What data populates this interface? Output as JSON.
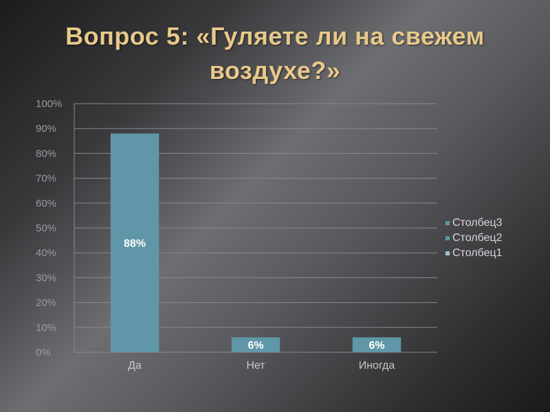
{
  "slide": {
    "title_line1": "Вопрос 5: «Гуляете ли на свежем",
    "title_line2": "воздухе?»"
  },
  "colors": {
    "bar": "#5f97a8",
    "title": "#e7c98a",
    "grid": "#8a8a8e",
    "legend_swatches": [
      "#5f97a8",
      "#5f97a8",
      "#9fc4cf"
    ]
  },
  "chart_data": {
    "type": "bar",
    "categories": [
      "Да",
      "Нет",
      "Иногда"
    ],
    "series": [
      {
        "name": "Столбец1",
        "values": [
          88,
          6,
          6
        ]
      }
    ],
    "data_labels": [
      "88%",
      "6%",
      "6%"
    ],
    "y_ticks": [
      "0%",
      "10%",
      "20%",
      "30%",
      "40%",
      "50%",
      "60%",
      "70%",
      "80%",
      "90%",
      "100%"
    ],
    "ylim": [
      0,
      100
    ],
    "grid": true,
    "legend": {
      "position": "right",
      "entries": [
        "Столбец3",
        "Столбец2",
        "Столбец1"
      ]
    }
  }
}
